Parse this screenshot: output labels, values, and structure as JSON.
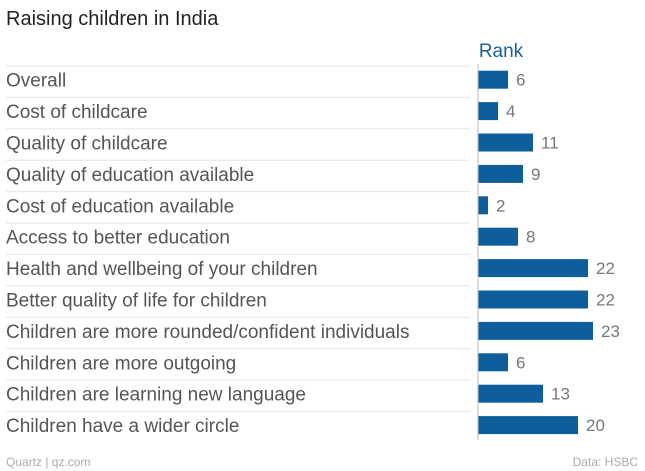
{
  "chart_data": {
    "type": "bar",
    "orientation": "horizontal",
    "title": "Raising children in India",
    "series": [
      {
        "name": "Rank",
        "values": [
          6,
          4,
          11,
          9,
          2,
          8,
          22,
          22,
          23,
          6,
          13,
          20
        ]
      }
    ],
    "categories": [
      "Overall",
      "Cost of childcare",
      "Quality of childcare",
      "Quality of education available",
      "Cost of education available",
      "Access to better education",
      "Health and wellbeing of your children",
      "Better quality of life for children",
      "Children are more rounded/confident individuals",
      "Children are more outgoing",
      "Children are learning new language",
      "Children have a wider circle"
    ],
    "xlim": [
      0,
      25
    ],
    "grid": true,
    "data_labels": true
  },
  "footer": {
    "credit": "Quartz | qz.com",
    "source": "Data: HSBC"
  },
  "colors": {
    "bar": "#0f5e9c",
    "column_header": "#1a5f96"
  }
}
